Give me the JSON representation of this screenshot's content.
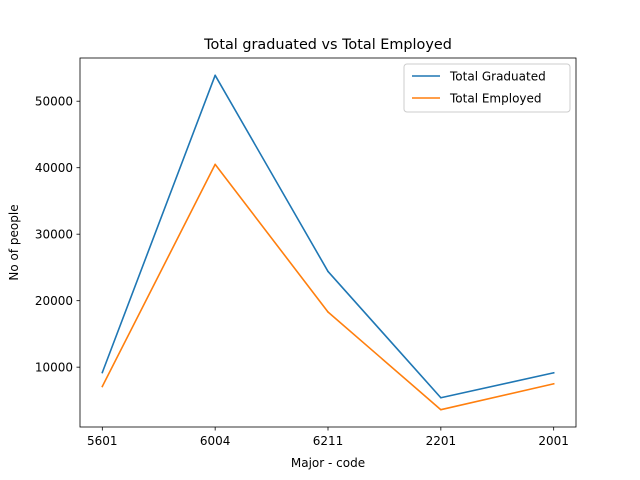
{
  "chart_data": {
    "type": "line",
    "title": "Total graduated vs Total Employed",
    "xlabel": "Major - code",
    "ylabel": "No of people",
    "categories": [
      "5601",
      "6004",
      "6211",
      "2201",
      "2001"
    ],
    "ylim": [
      1000,
      56500
    ],
    "yticks": [
      10000,
      20000,
      30000,
      40000,
      50000
    ],
    "grid": false,
    "legend_position": "top-right",
    "series": [
      {
        "name": "Total Graduated",
        "color": "#1f77b4",
        "values": [
          9200,
          53900,
          24400,
          5400,
          9150
        ]
      },
      {
        "name": "Total Employed",
        "color": "#ff7f0e",
        "values": [
          7100,
          40500,
          18300,
          3600,
          7500
        ]
      }
    ]
  }
}
